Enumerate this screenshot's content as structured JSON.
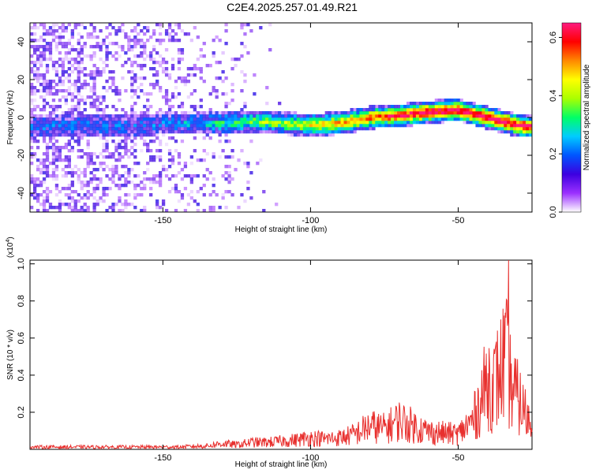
{
  "title": "C2E4.2025.257.01.49.R21",
  "chart_data": [
    {
      "type": "heatmap",
      "xlabel": "Height of straight line (km)",
      "ylabel": "Frequency (Hz)",
      "xlim": [
        -195,
        -25
      ],
      "ylim": [
        -50,
        50
      ],
      "xticks": [
        -150,
        -100,
        -50
      ],
      "yticks": [
        -40,
        -20,
        0,
        20,
        40
      ],
      "grid": false,
      "signal_track": {
        "description_points_x": [
          -195,
          -180,
          -160,
          -150,
          -140,
          -130,
          -120,
          -110,
          -100,
          -90,
          -80,
          -70,
          -60,
          -50,
          -40,
          -30,
          -25
        ],
        "center_freq_hz": [
          -5,
          -4,
          -5,
          -3,
          -3,
          -3,
          -2,
          -3,
          -4,
          -3,
          0,
          1,
          3,
          4,
          0,
          -4,
          -5
        ]
      },
      "colorbar": {
        "label": "Normalized spectral amplitude",
        "range": [
          0.0,
          0.65
        ],
        "ticks": [
          0.0,
          0.2,
          0.4,
          0.6
        ],
        "colors": [
          "#ffffff",
          "#9b30ff",
          "#3c00e0",
          "#0055ff",
          "#00ccff",
          "#00ff66",
          "#aaff00",
          "#ffff00",
          "#ff8800",
          "#ff0000",
          "#ff1a80"
        ]
      }
    },
    {
      "type": "line",
      "xlabel": "Height of straight line (km)",
      "ylabel": "SNR (10 * v/v)",
      "y_multiplier": "(x10",
      "y_multiplier_exp": "4",
      "y_multiplier_close": ")",
      "xlim": [
        -195,
        -25
      ],
      "ylim": [
        0,
        1.02
      ],
      "xticks": [
        -150,
        -100,
        -50
      ],
      "yticks": [
        0.2,
        0.4,
        0.6,
        0.8,
        1.0
      ],
      "series": [
        {
          "color": "#e8302e",
          "x": [
            -195,
            -185,
            -175,
            -165,
            -155,
            -145,
            -135,
            -130,
            -125,
            -120,
            -115,
            -110,
            -105,
            -100,
            -95,
            -90,
            -85,
            -80,
            -75,
            -70,
            -65,
            -60,
            -55,
            -50,
            -45,
            -42,
            -40,
            -38,
            -36,
            -34,
            -32,
            -30,
            -28,
            -25
          ],
          "y": [
            0.02,
            0.02,
            0.02,
            0.02,
            0.02,
            0.02,
            0.03,
            0.05,
            0.04,
            0.06,
            0.06,
            0.07,
            0.08,
            0.1,
            0.09,
            0.1,
            0.13,
            0.2,
            0.18,
            0.25,
            0.2,
            0.15,
            0.14,
            0.13,
            0.25,
            0.45,
            0.6,
            0.55,
            0.65,
            0.8,
            0.55,
            0.45,
            0.35,
            0.2
          ],
          "peak": {
            "x": -33,
            "y": 1.02
          }
        }
      ]
    }
  ]
}
